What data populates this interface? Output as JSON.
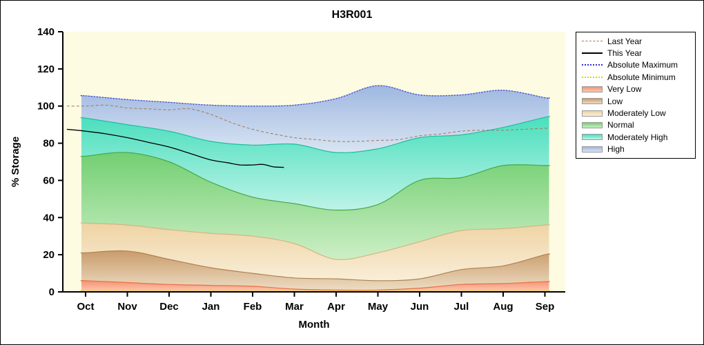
{
  "window": {
    "background": "#FFFFFF",
    "border": "#000000"
  },
  "chart_data": {
    "type": "area",
    "title": "H3R001",
    "xlabel": "Month",
    "ylabel": "% Storage",
    "ylim": [
      0,
      140
    ],
    "y_ticks": [
      0,
      20,
      40,
      60,
      80,
      100,
      120,
      140
    ],
    "x_ticks": [
      "Oct",
      "Nov",
      "Dec",
      "Jan",
      "Feb",
      "Mar",
      "Apr",
      "May",
      "Jun",
      "Jul",
      "Aug",
      "Sep"
    ],
    "plot_bg": "#FDFBE2",
    "grid": "off",
    "legend_position": "right-outside",
    "bands": [
      {
        "name": "Very Low",
        "values": [
          6,
          5,
          4,
          3.5,
          3,
          1.5,
          1,
          1,
          2,
          4,
          4.5,
          5.5
        ],
        "color_top": "#F5936E",
        "color_bottom": "#FBC9B4",
        "edge": "#E76F46"
      },
      {
        "name": "Low",
        "values": [
          21,
          22,
          17.5,
          13,
          10,
          7.5,
          7,
          6,
          7,
          12,
          14,
          20
        ],
        "color_top": "#C99C6B",
        "color_bottom": "#EDDCC3",
        "edge": "#AE8152"
      },
      {
        "name": "Moderately Low",
        "values": [
          37,
          36,
          33.5,
          31.5,
          30,
          26,
          17.5,
          21,
          27,
          33,
          34,
          36
        ],
        "color_top": "#EFD3A4",
        "color_bottom": "#F9EED8",
        "edge": "#D4B582"
      },
      {
        "name": "Normal",
        "values": [
          73,
          75,
          70,
          59,
          51,
          47.5,
          44,
          47,
          60,
          61.5,
          68,
          68
        ],
        "color_top": "#72CF72",
        "color_bottom": "#CDEFC6",
        "edge": "#47A847"
      },
      {
        "name": "Moderately High",
        "values": [
          93.5,
          90,
          86.5,
          81,
          79,
          79.5,
          75,
          77,
          83,
          84.5,
          88.5,
          94
        ],
        "color_top": "#4ADFBD",
        "color_bottom": "#BDF3E7",
        "edge": "#1DBE9C"
      },
      {
        "name": "High",
        "values": [
          105.5,
          103.5,
          102,
          100.5,
          100,
          100.5,
          104,
          111,
          106,
          106,
          108.5,
          104.5
        ],
        "color_top": "#9FB7E0",
        "color_bottom": "#D9E5F3",
        "edge": "#94AAD6"
      }
    ],
    "lines": [
      {
        "name": "Absolute Minimum",
        "color": "#D8D800",
        "dash": "1.5 2.5",
        "width": 1.3,
        "values": [
          0.6,
          0.6,
          0.6,
          0.6,
          0.6,
          0.6,
          0.6,
          0.6,
          0.6,
          0.6,
          0.6,
          0.6
        ]
      },
      {
        "name": "Absolute Maximum",
        "color": "#2B2BD5",
        "dash": "1.5 2.5",
        "width": 1.3,
        "values": [
          105.5,
          103.5,
          102,
          100.5,
          100,
          100.5,
          104,
          111,
          106,
          106,
          108.5,
          104.5
        ]
      },
      {
        "name": "Last Year",
        "color": "#A8744F",
        "dash": "4 3",
        "width": 1,
        "points": [
          [
            -0.45,
            100
          ],
          [
            0,
            100
          ],
          [
            0.5,
            100.5
          ],
          [
            1,
            99
          ],
          [
            1.5,
            98.5
          ],
          [
            2,
            98
          ],
          [
            2.5,
            98.5
          ],
          [
            3,
            95.5
          ],
          [
            3.5,
            91
          ],
          [
            4,
            87.5
          ],
          [
            4.5,
            85
          ],
          [
            5,
            83
          ],
          [
            5.5,
            82
          ],
          [
            6,
            81
          ],
          [
            6.5,
            81
          ],
          [
            7,
            81.5
          ],
          [
            7.5,
            82
          ],
          [
            8,
            84
          ],
          [
            8.5,
            85
          ],
          [
            9,
            86.5
          ],
          [
            9.5,
            87
          ],
          [
            10,
            87
          ],
          [
            10.5,
            87.5
          ],
          [
            11,
            88
          ],
          [
            11.1,
            88
          ]
        ]
      },
      {
        "name": "This Year",
        "color": "#000000",
        "dash": "",
        "width": 1.3,
        "points": [
          [
            -0.45,
            87.5
          ],
          [
            0,
            86.5
          ],
          [
            0.5,
            85
          ],
          [
            1,
            83
          ],
          [
            1.5,
            80.5
          ],
          [
            2,
            78
          ],
          [
            2.5,
            74.5
          ],
          [
            3,
            71
          ],
          [
            3.4,
            69.5
          ],
          [
            3.7,
            68.3
          ],
          [
            4,
            68.3
          ],
          [
            4.25,
            68.6
          ],
          [
            4.5,
            67.3
          ],
          [
            4.75,
            67
          ]
        ]
      }
    ],
    "legend": [
      {
        "label": "Last Year",
        "swatch": "line",
        "color": "#A8744F",
        "dash": "dashed"
      },
      {
        "label": "This Year",
        "swatch": "line",
        "color": "#000000",
        "dash": "solid"
      },
      {
        "label": "Absolute Maximum",
        "swatch": "line",
        "color": "#2B2BD5",
        "dash": "dotted"
      },
      {
        "label": "Absolute Minimum",
        "swatch": "line",
        "color": "#D8D800",
        "dash": "dotted"
      },
      {
        "label": "Very Low",
        "swatch": "band",
        "color_top": "#F5936E",
        "color_bottom": "#FBC9B4"
      },
      {
        "label": "Low",
        "swatch": "band",
        "color_top": "#C99C6B",
        "color_bottom": "#EDDCC3"
      },
      {
        "label": "Moderately Low",
        "swatch": "band",
        "color_top": "#EFD3A4",
        "color_bottom": "#F9EED8"
      },
      {
        "label": "Normal",
        "swatch": "band",
        "color_top": "#72CF72",
        "color_bottom": "#CDEFC6"
      },
      {
        "label": "Moderately High",
        "swatch": "band",
        "color_top": "#4ADFBD",
        "color_bottom": "#BDF3E7"
      },
      {
        "label": "High",
        "swatch": "band",
        "color_top": "#9FB7E0",
        "color_bottom": "#D9E5F3"
      }
    ]
  }
}
